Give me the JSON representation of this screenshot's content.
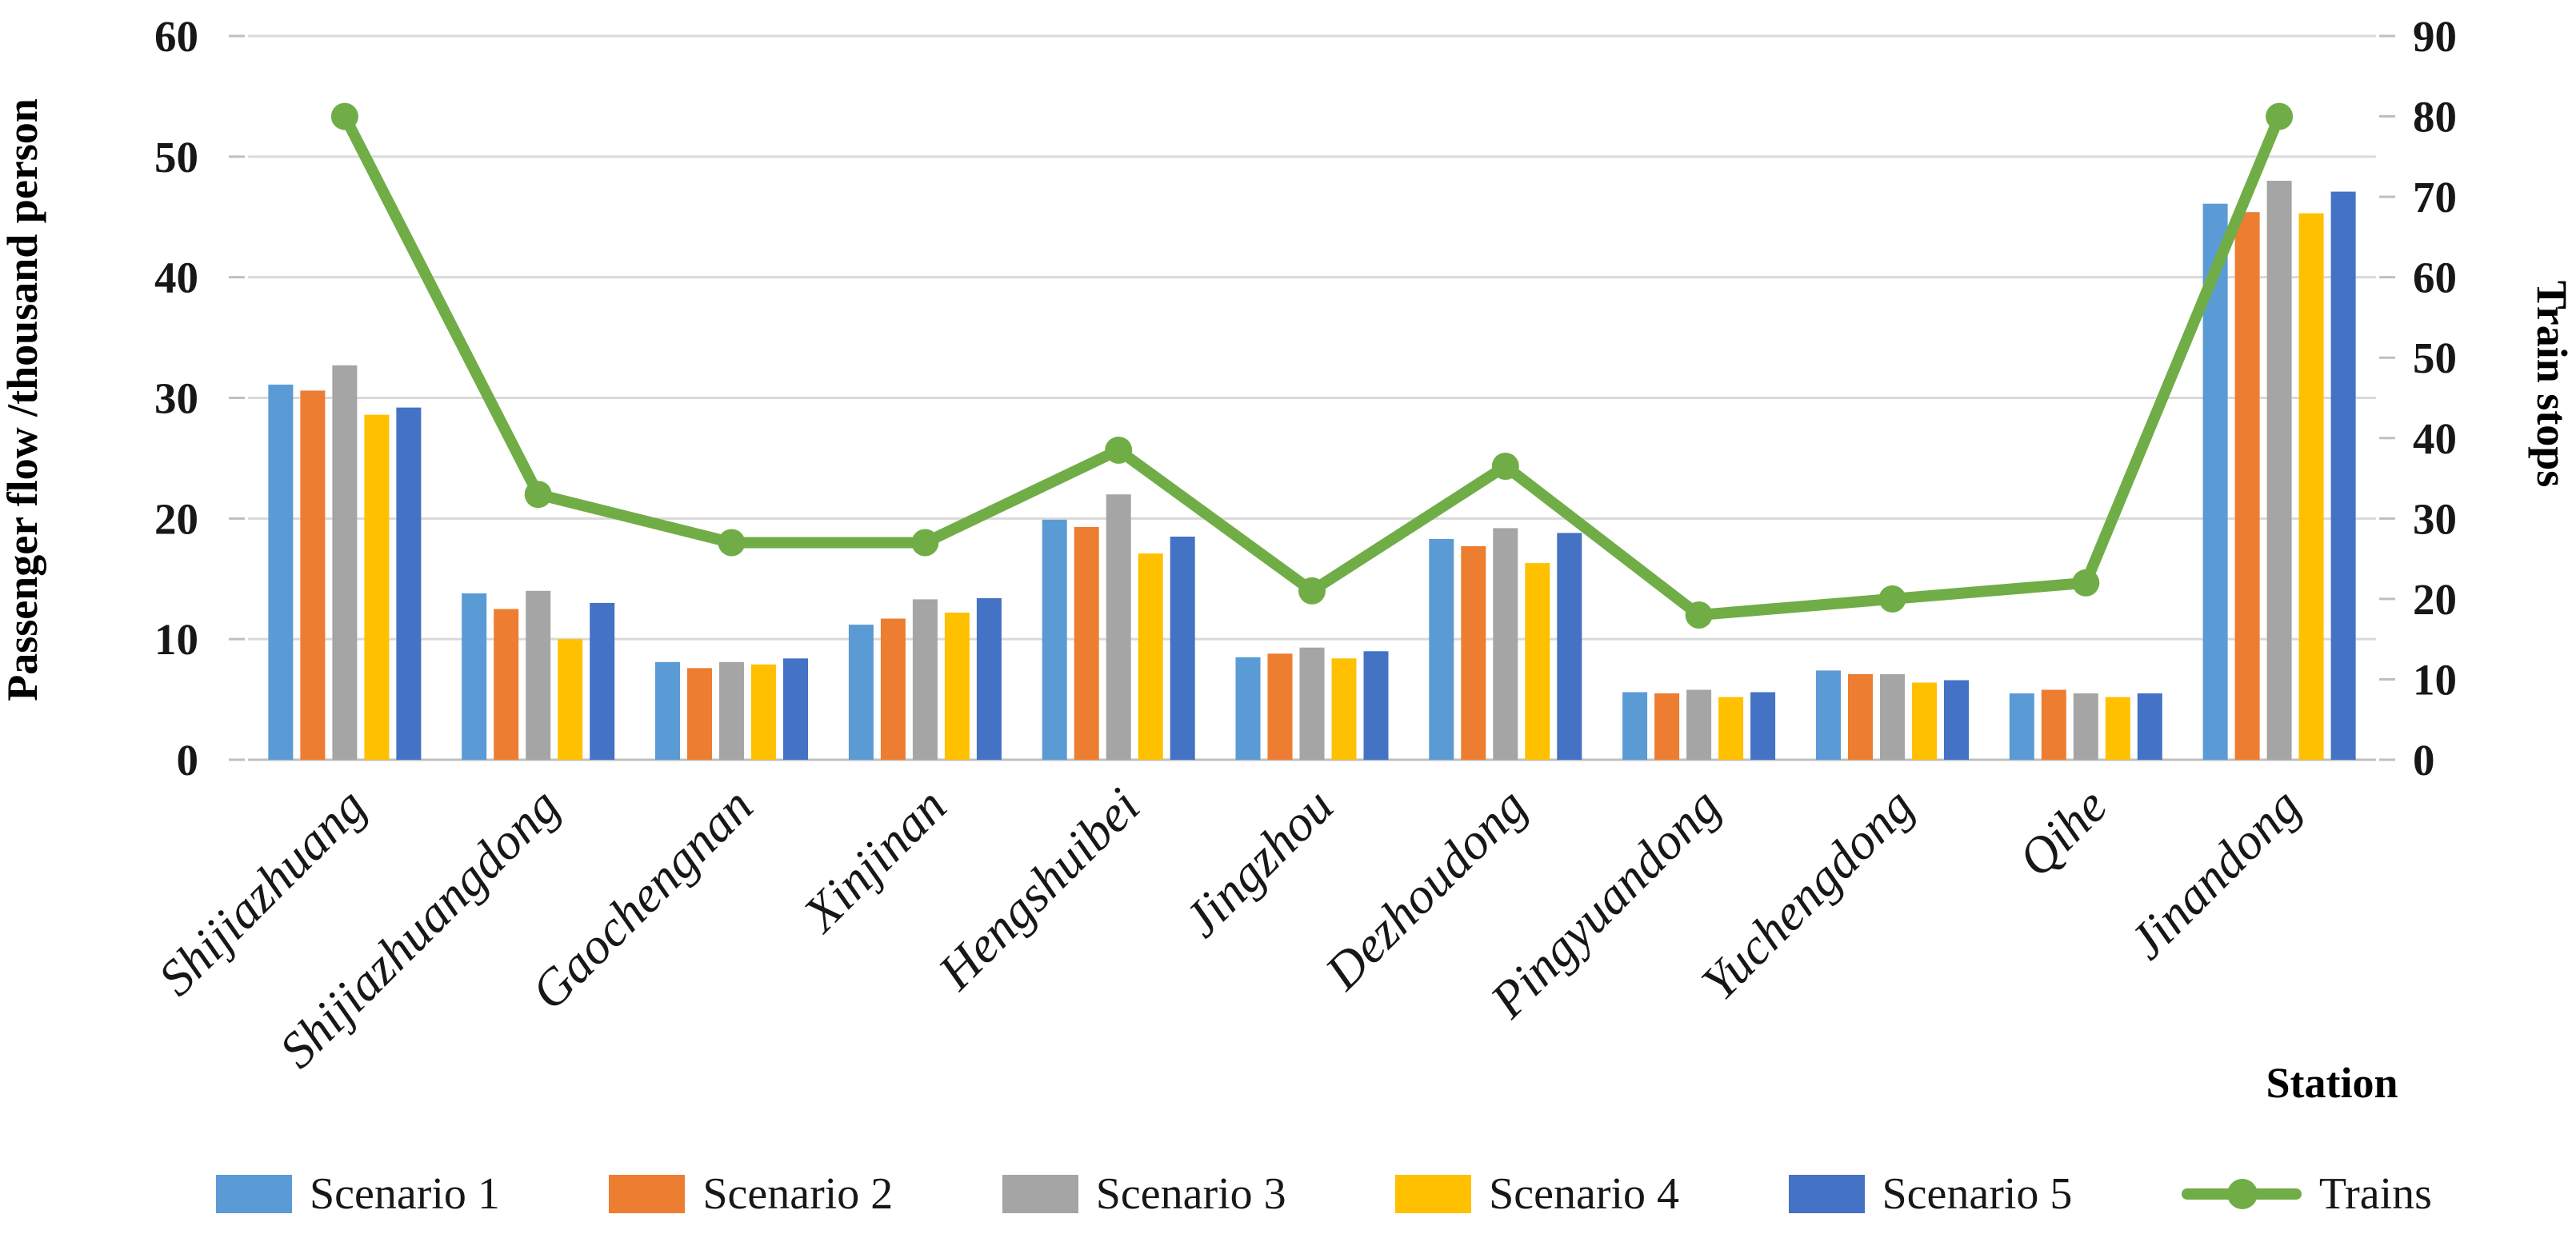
{
  "figure": {
    "y_left_title": "Passenger flow /thousand person",
    "y_right_title": "Train stops",
    "x_title": "Station"
  },
  "axes": {
    "y_left": {
      "min": 0,
      "max": 60,
      "ticks": [
        60,
        50,
        40,
        30,
        20,
        10,
        0
      ]
    },
    "y_right": {
      "min": 0,
      "max": 90,
      "ticks": [
        90,
        80,
        70,
        60,
        50,
        40,
        30,
        20,
        10,
        0
      ]
    }
  },
  "colors": {
    "gridline": "#D9D9D9",
    "axis_line": "#BFBFBF",
    "text": "#171717",
    "scenario1": "#5B9BD5",
    "scenario2": "#ED7D31",
    "scenario3": "#A5A5A5",
    "scenario4": "#FFC000",
    "scenario5": "#4472C4",
    "trains": "#70AD47"
  },
  "chart_data": {
    "type": "combo",
    "subtype": [
      "bar",
      "line"
    ],
    "title": "",
    "xlabel": "Station",
    "ylabel_left": "Passenger flow /thousand person",
    "ylabel_right": "Train stops",
    "ylim_left": [
      0,
      60
    ],
    "ylim_right": [
      0,
      90
    ],
    "grid": true,
    "legend_position": "bottom",
    "categories": [
      "Shijiazhuang",
      "Shijiazhuangdong",
      "Gaochengnan",
      "Xinjinan",
      "Hengshuibei",
      "Jingzhou",
      "Dezhoudong",
      "Pingyuandong",
      "Yuchengdong",
      "Qihe",
      "Jinandong"
    ],
    "series": [
      {
        "name": "Scenario 1",
        "type": "bar",
        "axis": "left",
        "color": "#5B9BD5",
        "values": [
          31.1,
          13.8,
          8.1,
          11.2,
          19.9,
          8.5,
          18.3,
          5.6,
          7.4,
          5.5,
          46.1
        ]
      },
      {
        "name": "Scenario 2",
        "type": "bar",
        "axis": "left",
        "color": "#ED7D31",
        "values": [
          30.6,
          12.5,
          7.6,
          11.7,
          19.3,
          8.8,
          17.7,
          5.5,
          7.1,
          5.8,
          45.4
        ]
      },
      {
        "name": "Scenario 3",
        "type": "bar",
        "axis": "left",
        "color": "#A5A5A5",
        "values": [
          32.7,
          14.0,
          8.1,
          13.3,
          22.0,
          9.3,
          19.2,
          5.8,
          7.1,
          5.5,
          48.0
        ]
      },
      {
        "name": "Scenario 4",
        "type": "bar",
        "axis": "left",
        "color": "#FFC000",
        "values": [
          28.6,
          10.0,
          7.9,
          12.2,
          17.1,
          8.4,
          16.3,
          5.2,
          6.4,
          5.2,
          45.3
        ]
      },
      {
        "name": "Scenario 5",
        "type": "bar",
        "axis": "left",
        "color": "#4472C4",
        "values": [
          29.2,
          13.0,
          8.4,
          13.4,
          18.5,
          9.0,
          18.8,
          5.6,
          6.6,
          5.5,
          47.1
        ]
      },
      {
        "name": "Trains",
        "type": "line",
        "axis": "right",
        "color": "#70AD47",
        "values": [
          80,
          33,
          27,
          27,
          38.5,
          21,
          36.5,
          18,
          20,
          22,
          80
        ]
      }
    ]
  }
}
